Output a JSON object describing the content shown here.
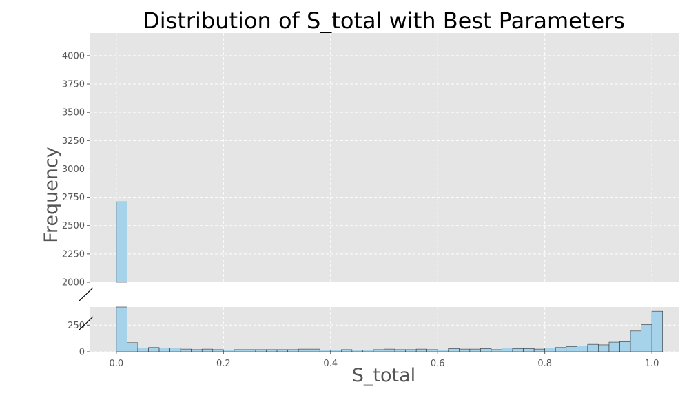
{
  "chart_data": {
    "type": "bar",
    "title": "Distribution of S_total with Best Parameters",
    "xlabel": "S_total",
    "ylabel": "Frequency",
    "bar_color": "#a6d3ea",
    "bar_edge_color": "#333333",
    "panel_color": "#e5e5e5",
    "grid": true,
    "broken_y_axis": true,
    "xlim": [
      -0.05,
      1.05
    ],
    "upper_ylim": [
      2000,
      4200
    ],
    "lower_ylim": [
      0,
      420
    ],
    "x_ticks": [
      0.0,
      0.2,
      0.4,
      0.6,
      0.8,
      1.0
    ],
    "x_tick_labels": [
      "0.0",
      "0.2",
      "0.4",
      "0.6",
      "0.8",
      "1.0"
    ],
    "upper_y_ticks": [
      2000,
      2250,
      2500,
      2750,
      3000,
      3250,
      3500,
      3750,
      4000
    ],
    "upper_y_tick_labels": [
      "2000",
      "2250",
      "2500",
      "2750",
      "3000",
      "3250",
      "3500",
      "3750",
      "4000"
    ],
    "lower_y_ticks": [
      0,
      250
    ],
    "lower_y_tick_labels": [
      "0",
      "250"
    ],
    "bin_width": 0.02,
    "bin_start": 0.0,
    "values": [
      2710,
      85,
      35,
      40,
      35,
      35,
      25,
      20,
      25,
      20,
      15,
      20,
      20,
      20,
      20,
      20,
      20,
      25,
      25,
      15,
      15,
      20,
      15,
      15,
      20,
      25,
      20,
      20,
      25,
      20,
      15,
      30,
      25,
      25,
      30,
      20,
      35,
      30,
      30,
      25,
      35,
      40,
      50,
      55,
      70,
      65,
      90,
      95,
      195,
      255,
      380
    ]
  }
}
